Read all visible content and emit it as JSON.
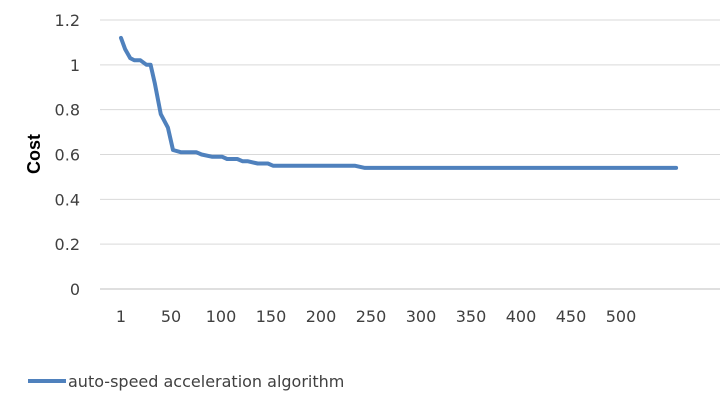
{
  "chart_data": {
    "type": "line",
    "title": "",
    "xlabel": "",
    "ylabel": "Cost",
    "ylim": [
      0,
      1.2
    ],
    "y_ticks": [
      "0",
      "0.2",
      "0.4",
      "0.6",
      "0.8",
      "1",
      "1.2"
    ],
    "x_ticks": [
      "1",
      "50",
      "100",
      "150",
      "200",
      "250",
      "300",
      "350",
      "400",
      "450",
      "500"
    ],
    "xlim": [
      1,
      545
    ],
    "grid": true,
    "legend_position": "bottom-left",
    "colors": {
      "series": "#4f81bd",
      "grid": "#d9d9d9",
      "axis": "#bfbfbf",
      "text": "#404040"
    },
    "series": [
      {
        "name": "auto-speed acceleration algorithm",
        "x": [
          1,
          5,
          10,
          14,
          20,
          26,
          30,
          34,
          40,
          47,
          52,
          60,
          65,
          75,
          80,
          90,
          100,
          105,
          115,
          120,
          125,
          135,
          140,
          145,
          150,
          155,
          160,
          180,
          200,
          220,
          230,
          240,
          250,
          300,
          400,
          500,
          545
        ],
        "values": [
          1.12,
          1.07,
          1.03,
          1.02,
          1.02,
          1.0,
          1.0,
          0.92,
          0.78,
          0.72,
          0.62,
          0.61,
          0.61,
          0.61,
          0.6,
          0.59,
          0.59,
          0.58,
          0.58,
          0.57,
          0.57,
          0.56,
          0.56,
          0.56,
          0.55,
          0.55,
          0.55,
          0.55,
          0.55,
          0.55,
          0.55,
          0.54,
          0.54,
          0.54,
          0.54,
          0.54,
          0.54
        ]
      }
    ]
  }
}
